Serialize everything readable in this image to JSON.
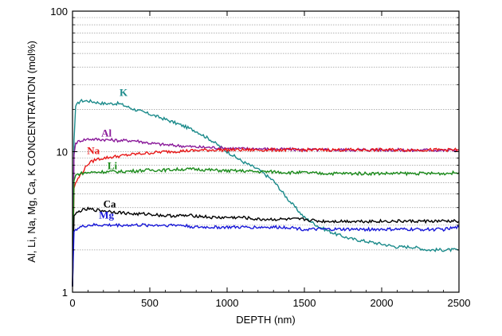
{
  "chart_data": {
    "type": "line",
    "xlabel": "DEPTH (nm)",
    "ylabel": "Al, Li, Na, Mg, Ca, K CONCENTRATION (mol%)",
    "xlim": [
      0,
      2500
    ],
    "ylim": [
      1,
      100
    ],
    "yscale": "log",
    "x_ticks": [
      "0",
      "500",
      "1000",
      "1500",
      "2000",
      "2500"
    ],
    "y_ticks": [
      "1",
      "10",
      "100"
    ],
    "grid": "horizontal minor and major lines, dotted gray",
    "legend": "inline labels next to lines",
    "series": [
      {
        "name": "K",
        "color": "#1a8a8a",
        "x": [
          0,
          10,
          20,
          50,
          100,
          200,
          300,
          400,
          500,
          600,
          700,
          800,
          900,
          1000,
          1100,
          1200,
          1300,
          1400,
          1500,
          1600,
          1700,
          1800,
          1900,
          2000,
          2100,
          2200,
          2300,
          2400,
          2500
        ],
        "y": [
          1.1,
          12,
          21,
          23,
          23,
          22,
          22,
          20,
          18.5,
          17,
          15.5,
          14,
          12,
          10,
          8.5,
          7.5,
          6.2,
          4.5,
          3.4,
          2.9,
          2.6,
          2.4,
          2.3,
          2.2,
          2.1,
          2.1,
          2.0,
          2.0,
          2.0
        ]
      },
      {
        "name": "Al",
        "color": "#8a1a9a",
        "x": [
          0,
          10,
          20,
          50,
          100,
          200,
          300,
          400,
          500,
          600,
          700,
          800,
          900,
          1000,
          1100,
          1200,
          1300,
          1400,
          1500,
          1600,
          1700,
          1800,
          1900,
          2000,
          2100,
          2200,
          2300,
          2400,
          2500
        ],
        "y": [
          1.1,
          9.5,
          11.5,
          12,
          12.3,
          12.2,
          12,
          12,
          11.5,
          11.2,
          11,
          10.8,
          10.7,
          10.6,
          10.5,
          10.5,
          10.4,
          10.4,
          10.3,
          10.3,
          10.3,
          10.3,
          10.3,
          10.3,
          10.3,
          10.2,
          10.3,
          10.2,
          10.3
        ]
      },
      {
        "name": "Na",
        "color": "#e81818",
        "x": [
          0,
          10,
          20,
          50,
          100,
          150,
          200,
          300,
          400,
          500,
          600,
          700,
          800,
          900,
          1000,
          1100,
          1200,
          1300,
          1400,
          1500,
          1600,
          1700,
          1800,
          1900,
          2000,
          2100,
          2200,
          2300,
          2400,
          2500
        ],
        "y": [
          1.1,
          5.5,
          6.0,
          6.8,
          8.2,
          8.8,
          9.0,
          9.3,
          9.6,
          9.8,
          10.0,
          10.1,
          10.2,
          10.3,
          10.3,
          10.3,
          10.3,
          10.3,
          10.3,
          10.3,
          10.3,
          10.3,
          10.3,
          10.3,
          10.3,
          10.3,
          10.3,
          10.3,
          10.3,
          10.3
        ]
      },
      {
        "name": "Li",
        "color": "#1a8a1a",
        "x": [
          0,
          10,
          20,
          50,
          100,
          200,
          300,
          400,
          500,
          600,
          700,
          800,
          900,
          1000,
          1100,
          1200,
          1300,
          1400,
          1500,
          1600,
          1700,
          1800,
          1900,
          2000,
          2100,
          2200,
          2300,
          2400,
          2500
        ],
        "y": [
          1.1,
          6.2,
          6.8,
          7.0,
          7.1,
          7.2,
          7.2,
          7.3,
          7.4,
          7.4,
          7.5,
          7.5,
          7.4,
          7.3,
          7.3,
          7.2,
          7.2,
          7.1,
          7.1,
          7.0,
          7.0,
          7.0,
          7.0,
          7.0,
          7.0,
          7.0,
          7.0,
          7.0,
          7.1
        ]
      },
      {
        "name": "Ca",
        "color": "#000000",
        "x": [
          0,
          10,
          20,
          50,
          100,
          200,
          300,
          400,
          500,
          600,
          700,
          800,
          900,
          1000,
          1100,
          1200,
          1300,
          1400,
          1500,
          1600,
          1700,
          1800,
          1900,
          2000,
          2100,
          2200,
          2300,
          2400,
          2500
        ],
        "y": [
          1.1,
          3.5,
          3.6,
          3.8,
          3.9,
          3.8,
          3.7,
          3.6,
          3.6,
          3.5,
          3.5,
          3.5,
          3.4,
          3.4,
          3.4,
          3.3,
          3.3,
          3.3,
          3.3,
          3.2,
          3.2,
          3.2,
          3.2,
          3.2,
          3.2,
          3.2,
          3.2,
          3.2,
          3.2
        ]
      },
      {
        "name": "Mg",
        "color": "#1818d8",
        "x": [
          0,
          10,
          20,
          50,
          100,
          200,
          300,
          400,
          500,
          600,
          700,
          800,
          900,
          1000,
          1100,
          1200,
          1300,
          1400,
          1500,
          1600,
          1700,
          1800,
          1900,
          2000,
          2100,
          2200,
          2300,
          2400,
          2500
        ],
        "y": [
          1.1,
          2.7,
          2.8,
          2.9,
          3.0,
          3.0,
          3.0,
          3.0,
          3.0,
          3.0,
          3.0,
          2.9,
          2.9,
          2.9,
          2.9,
          2.9,
          2.9,
          2.9,
          2.8,
          2.8,
          2.8,
          2.8,
          2.8,
          2.8,
          2.8,
          2.8,
          2.8,
          2.8,
          2.9
        ]
      }
    ],
    "labels": [
      {
        "text": "K",
        "series": "K",
        "x": 330,
        "y": 25
      },
      {
        "text": "Al",
        "series": "Al",
        "x": 220,
        "y": 12.8
      },
      {
        "text": "Na",
        "series": "Na",
        "x": 135,
        "y": 9.6
      },
      {
        "text": "Li",
        "series": "Li",
        "x": 258,
        "y": 7.5
      },
      {
        "text": "Ca",
        "series": "Ca",
        "x": 240,
        "y": 4.0
      },
      {
        "text": "Mg",
        "series": "Mg",
        "x": 220,
        "y": 3.35
      }
    ]
  }
}
